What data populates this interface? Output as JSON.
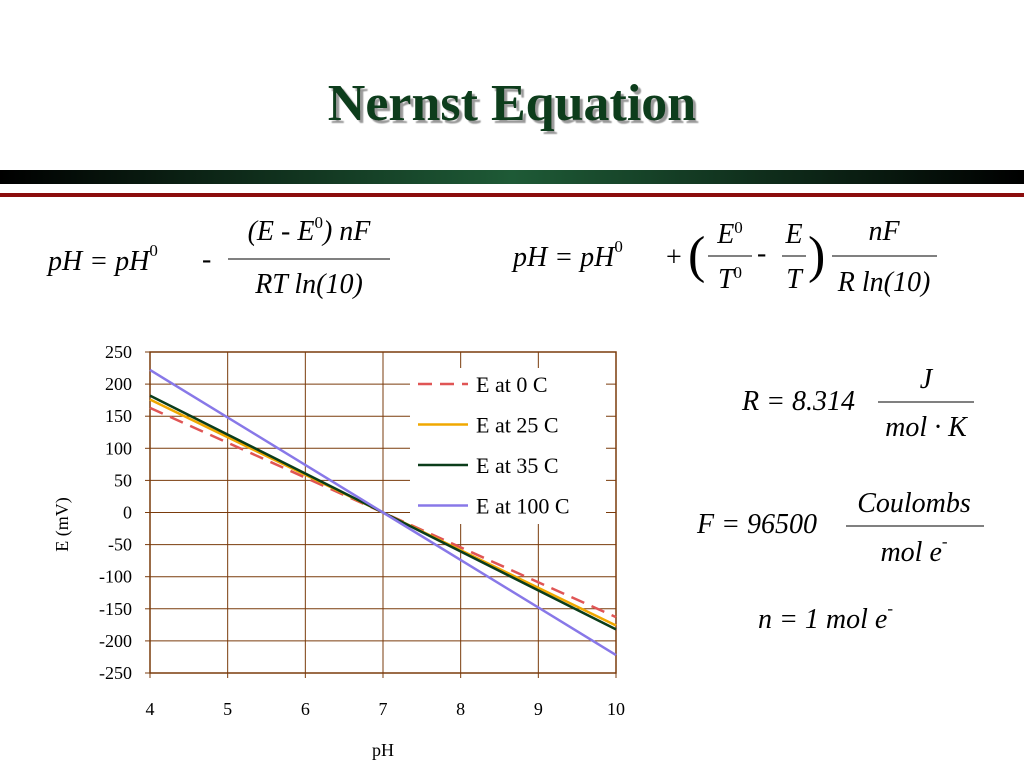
{
  "title": "Nernst Equation",
  "equations": {
    "left": {
      "lhs": "pH = pH",
      "lhs_sup": "0",
      "op": "-",
      "numerator": "(E - E",
      "numerator_sup": "0",
      "numerator_tail": ") nF",
      "denominator": "RT ln(10)"
    },
    "right": {
      "lhs": "pH = pH",
      "lhs_sup": "0",
      "op": "+",
      "open": "(",
      "f1_num": "E",
      "f1_num_sup": "0",
      "f1_den": "T",
      "f1_den_sup": "0",
      "minus": "-",
      "f2_num": "E",
      "f2_den": "T",
      "close": ")",
      "f3_num": "nF",
      "f3_den": "R ln(10)"
    },
    "R": {
      "lhs": "R = 8.314",
      "num": "J",
      "den": "mol · K"
    },
    "F": {
      "lhs": "F = 96500",
      "num": "Coulombs",
      "den": "mol e",
      "den_sup": "-"
    },
    "n": {
      "text": "n = 1 mol e",
      "sup": "-"
    }
  },
  "chart_data": {
    "type": "line",
    "x": [
      4,
      7,
      10
    ],
    "series": [
      {
        "name": "E at 0 C",
        "color": "#e05555",
        "dashed": true,
        "values": [
          163,
          0,
          -163
        ]
      },
      {
        "name": "E at 25 C",
        "color": "#f0a800",
        "dashed": false,
        "values": [
          176,
          0,
          -176
        ]
      },
      {
        "name": "E at 35 C",
        "color": "#0b3d1a",
        "dashed": false,
        "values": [
          182,
          0,
          -182
        ]
      },
      {
        "name": "E at 100 C",
        "color": "#8878e8",
        "dashed": false,
        "values": [
          222,
          0,
          -222
        ]
      }
    ],
    "xlim": [
      4,
      10
    ],
    "xticks": [
      4,
      5,
      6,
      7,
      8,
      9,
      10
    ],
    "ylim": [
      -250,
      250
    ],
    "yticks": [
      -250,
      -200,
      -150,
      -100,
      -50,
      0,
      50,
      100,
      150,
      200,
      250
    ],
    "x_label": "pH",
    "y_label": "E (mV)",
    "grid": true,
    "legend": "upper right"
  }
}
